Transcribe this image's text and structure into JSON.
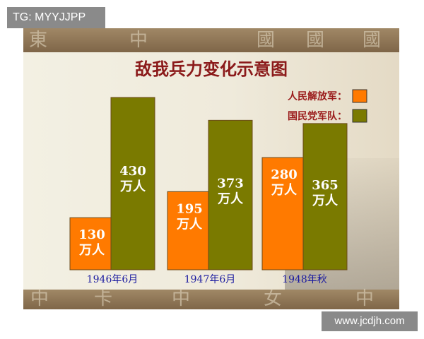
{
  "overlays": {
    "top_tag": "TG: MYYJJPP",
    "bottom_watermark": "www.jcdjh.com"
  },
  "background_banner": {
    "top_glyphs": [
      "東",
      "中",
      "國",
      "國",
      "國"
    ],
    "bottom_glyphs": [
      "中",
      "卡",
      "中",
      "女",
      "中"
    ]
  },
  "colors": {
    "series_1": "#ff7a00",
    "series_2": "#7a7a00",
    "title": "#8b1a1a",
    "legend_text": "#9b1c1c",
    "axis_label": "#1a1aa0",
    "value_label": "#ffffff"
  },
  "chart_data": {
    "type": "bar",
    "title": "敌我兵力变化示意图",
    "categories": [
      "1946年6月",
      "1947年6月",
      "1948年秋"
    ],
    "series": [
      {
        "name": "人民解放军：",
        "values": [
          130,
          195,
          280
        ]
      },
      {
        "name": "国民党军队：",
        "values": [
          430,
          373,
          365
        ]
      }
    ],
    "value_unit": "万人",
    "ylim": [
      0,
      430
    ],
    "grid": false,
    "legend_position": "top-right"
  }
}
